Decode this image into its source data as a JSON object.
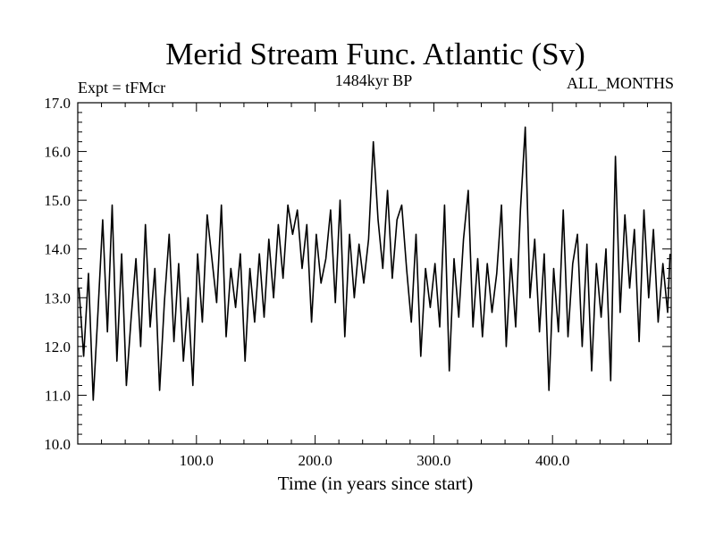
{
  "chart_data": {
    "type": "line",
    "title": "Merid Stream Func. Atlantic (Sv)",
    "subtitle_left": "Expt = tFMcr",
    "subtitle_center": "1484kyr BP",
    "subtitle_right": "ALL_MONTHS",
    "xlabel": "Time (in years since start)",
    "ylabel": "",
    "xlim": [
      0,
      500
    ],
    "ylim": [
      10.0,
      17.0
    ],
    "x_ticks": [
      100,
      200,
      300,
      400
    ],
    "x_tick_labels": [
      "100.0",
      "200.0",
      "300.0",
      "400.0"
    ],
    "y_ticks": [
      10,
      11,
      12,
      13,
      14,
      15,
      16,
      17
    ],
    "y_tick_labels": [
      "10.0",
      "11.0",
      "12.0",
      "13.0",
      "14.0",
      "15.0",
      "16.0",
      "17.0"
    ],
    "grid": false,
    "line_color": "#000000",
    "series": [
      {
        "name": "Merid Stream Func. Atlantic",
        "x": [
          1,
          5,
          9,
          13,
          17,
          21,
          25,
          29,
          33,
          37,
          41,
          45,
          49,
          53,
          57,
          61,
          65,
          69,
          73,
          77,
          81,
          85,
          89,
          93,
          97,
          101,
          105,
          109,
          113,
          117,
          121,
          125,
          129,
          133,
          137,
          141,
          145,
          149,
          153,
          157,
          161,
          165,
          169,
          173,
          177,
          181,
          185,
          189,
          193,
          197,
          201,
          205,
          209,
          213,
          217,
          221,
          225,
          229,
          233,
          237,
          241,
          245,
          249,
          253,
          257,
          261,
          265,
          269,
          273,
          277,
          281,
          285,
          289,
          293,
          297,
          301,
          305,
          309,
          313,
          317,
          321,
          325,
          329,
          333,
          337,
          341,
          345,
          349,
          353,
          357,
          361,
          365,
          369,
          373,
          377,
          381,
          385,
          389,
          393,
          397,
          401,
          405,
          409,
          413,
          417,
          421,
          425,
          429,
          433,
          437,
          441,
          445,
          449,
          453,
          457,
          461,
          465,
          469,
          473,
          477,
          481,
          485,
          489,
          493,
          497,
          499
        ],
        "values": [
          13.2,
          11.8,
          13.5,
          10.9,
          12.7,
          14.6,
          12.3,
          14.9,
          11.7,
          13.9,
          11.2,
          12.6,
          13.8,
          12.0,
          14.5,
          12.4,
          13.6,
          11.1,
          12.9,
          14.3,
          12.1,
          13.7,
          11.7,
          13.0,
          11.2,
          13.9,
          12.5,
          14.7,
          13.8,
          12.9,
          14.9,
          12.2,
          13.6,
          12.8,
          13.9,
          11.7,
          13.6,
          12.5,
          13.9,
          12.6,
          14.2,
          13.0,
          14.5,
          13.4,
          14.9,
          14.3,
          14.8,
          13.6,
          14.5,
          12.5,
          14.3,
          13.3,
          13.8,
          14.8,
          12.9,
          15.0,
          12.2,
          14.3,
          13.0,
          14.1,
          13.3,
          14.2,
          16.2,
          14.6,
          13.6,
          15.2,
          13.4,
          14.6,
          14.9,
          13.6,
          12.5,
          14.3,
          11.8,
          13.6,
          12.8,
          13.7,
          12.4,
          14.9,
          11.5,
          13.8,
          12.6,
          14.2,
          15.2,
          12.4,
          13.8,
          12.2,
          13.7,
          12.7,
          13.5,
          14.9,
          12.0,
          13.8,
          12.4,
          14.8,
          16.5,
          13.0,
          14.2,
          12.3,
          13.9,
          11.1,
          13.6,
          12.3,
          14.8,
          12.2,
          13.7,
          14.3,
          12.0,
          14.1,
          11.5,
          13.7,
          12.6,
          14.0,
          11.3,
          15.9,
          12.7,
          14.7,
          13.2,
          14.4,
          12.1,
          14.8,
          13.0,
          14.4,
          12.5,
          13.7,
          12.7,
          13.9
        ]
      }
    ]
  }
}
